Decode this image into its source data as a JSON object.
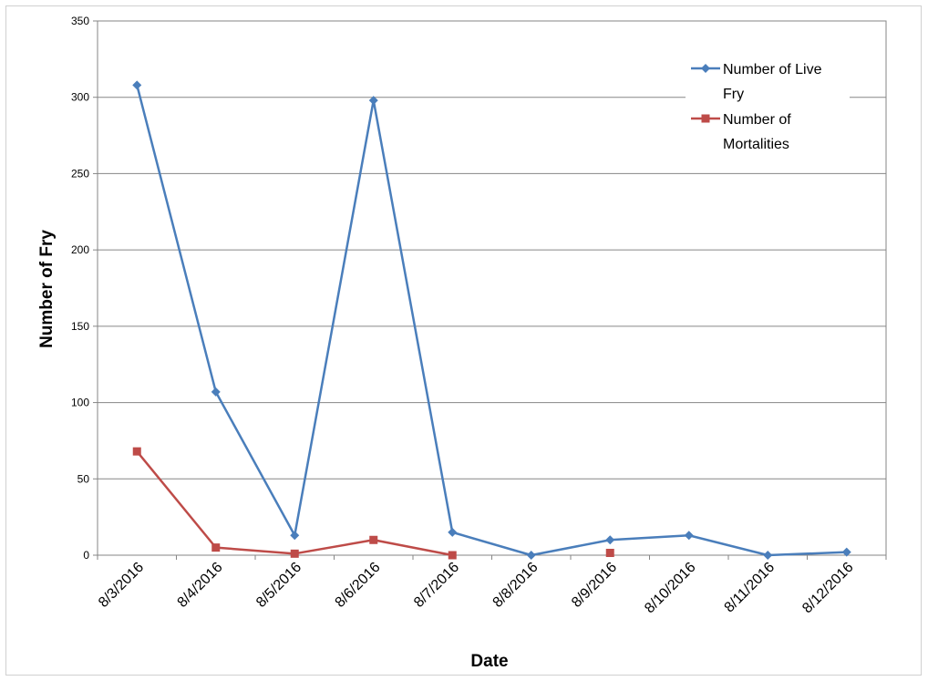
{
  "chart_data": {
    "type": "line",
    "title": "",
    "xlabel": "Date",
    "ylabel": "Number of Fry",
    "ylim": [
      0,
      350
    ],
    "yticks": [
      0,
      50,
      100,
      150,
      200,
      250,
      300,
      350
    ],
    "grid": true,
    "legend_position": "top-right",
    "categories": [
      "8/3/2016",
      "8/4/2016",
      "8/5/2016",
      "8/6/2016",
      "8/7/2016",
      "8/8/2016",
      "8/9/2016",
      "8/10/2016",
      "8/11/2016",
      "8/12/2016"
    ],
    "series": [
      {
        "name": "Number of Live Fry",
        "legend_lines": [
          "Number of Live",
          "Fry"
        ],
        "color": "#4a7ebb",
        "marker": "diamond",
        "values": [
          308,
          107,
          13,
          298,
          15,
          0,
          10,
          13,
          0,
          2
        ]
      },
      {
        "name": "Number of Mortalities",
        "legend_lines": [
          "Number of",
          "Mortalities"
        ],
        "color": "#be4b48",
        "marker": "square",
        "values": [
          68,
          5,
          1,
          10,
          0,
          null,
          1.5,
          null,
          null,
          null
        ]
      }
    ]
  }
}
